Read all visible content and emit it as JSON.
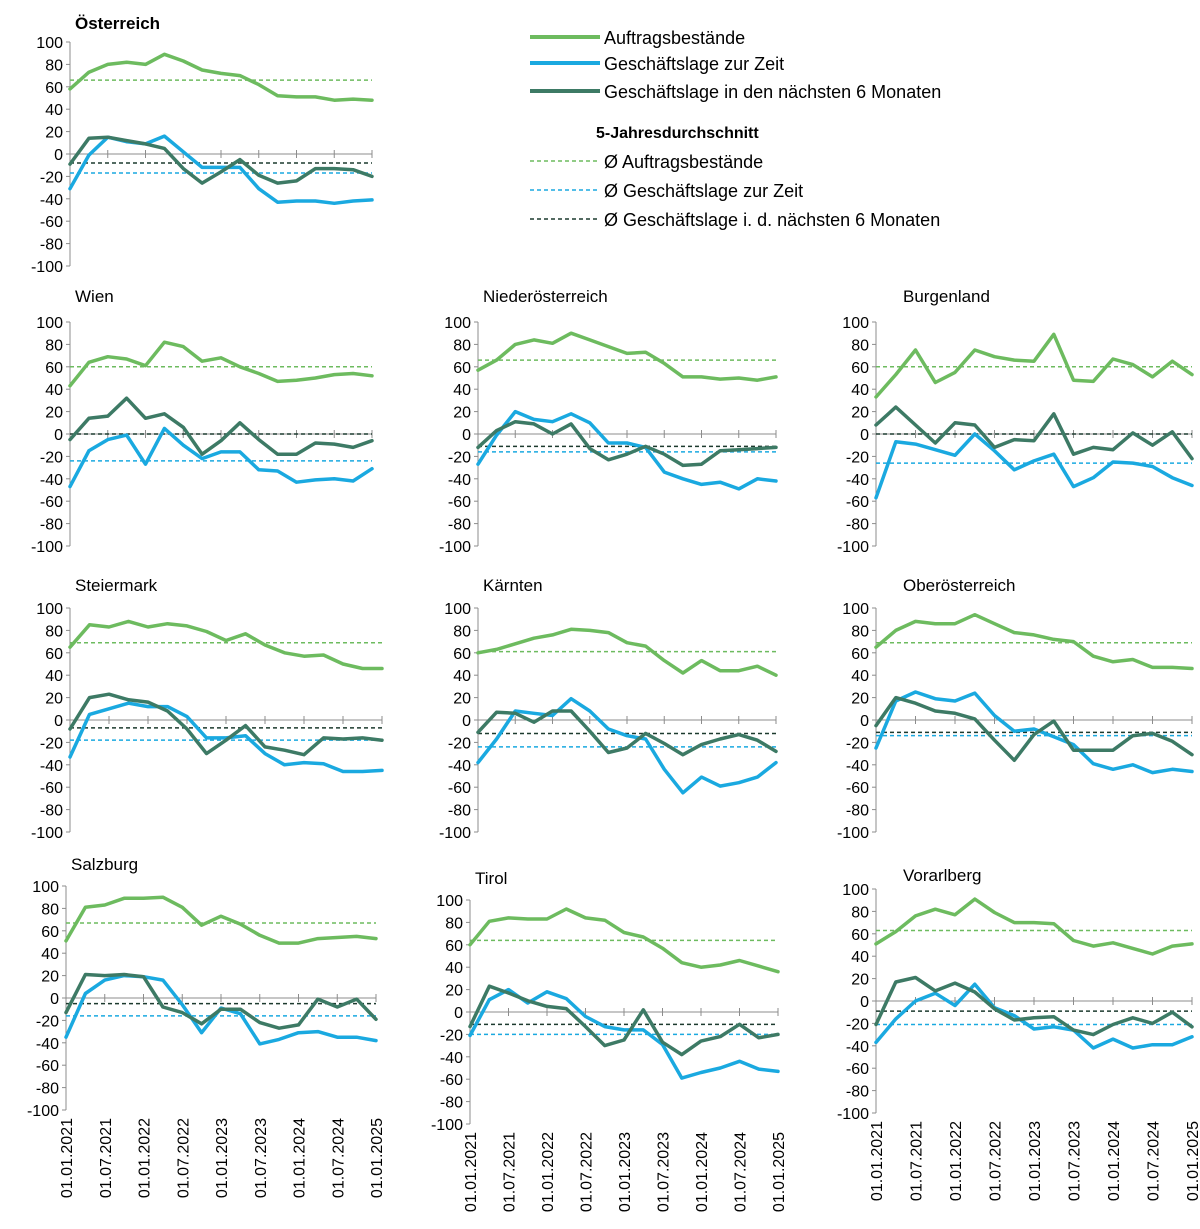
{
  "legend": {
    "series": [
      {
        "label": "Auftragsbestände",
        "color": "#6dbb5f"
      },
      {
        "label": "Geschäftslage zur Zeit",
        "color": "#1aa9e0"
      },
      {
        "label": "Geschäftslage in den nächsten 6 Monaten",
        "color": "#3d7a65"
      }
    ],
    "avg_title": "5-Jahresdurchschnitt",
    "averages": [
      {
        "label": "Ø Auftragsbestände",
        "color": "#6dbb5f"
      },
      {
        "label": "Ø Geschäftslage zur Zeit",
        "color": "#1aa9e0"
      },
      {
        "label": "Ø Geschäftslage i. d. nächsten 6 Monaten",
        "color": "#1c3a2e"
      }
    ]
  },
  "chart_data": [
    {
      "type": "line",
      "title": "Österreich",
      "ylim": [
        -100,
        100
      ],
      "yticks": [
        "100",
        "80",
        "60",
        "40",
        "20",
        "0",
        "-20",
        "-40",
        "-60",
        "-80",
        "-100"
      ],
      "series": [
        {
          "name": "Auftragsbestände",
          "values": [
            58,
            73,
            80,
            82,
            80,
            89,
            83,
            75,
            72,
            70,
            62,
            52,
            51,
            51,
            48,
            49,
            48
          ],
          "avg": 66
        },
        {
          "name": "Geschäftslage zur Zeit",
          "values": [
            -31,
            -1,
            15,
            11,
            9,
            16,
            2,
            -12,
            -12,
            -12,
            -31,
            -43,
            -42,
            -42,
            -44,
            -42,
            -41
          ],
          "avg": -17
        },
        {
          "name": "Geschäftslage in den nächsten 6 Monaten",
          "values": [
            -9,
            14,
            15,
            12,
            9,
            5,
            -13,
            -26,
            -16,
            -5,
            -19,
            -26,
            -24,
            -13,
            -13,
            -14,
            -20
          ],
          "avg": -8
        }
      ]
    },
    {
      "type": "line",
      "title": "Wien",
      "ylim": [
        -100,
        100
      ],
      "yticks": [
        "100",
        "80",
        "60",
        "40",
        "20",
        "0",
        "-20",
        "-40",
        "-60",
        "-80",
        "-100"
      ],
      "series": [
        {
          "name": "Auftragsbestände",
          "values": [
            43,
            64,
            69,
            67,
            61,
            82,
            78,
            65,
            68,
            60,
            54,
            47,
            48,
            50,
            53,
            54,
            52
          ],
          "avg": 60
        },
        {
          "name": "Geschäftslage zur Zeit",
          "values": [
            -47,
            -15,
            -5,
            -1,
            -27,
            5,
            -10,
            -22,
            -16,
            -16,
            -32,
            -33,
            -43,
            -41,
            -40,
            -42,
            -31
          ],
          "avg": -24
        },
        {
          "name": "Geschäftslage in den nächsten 6 Monaten",
          "values": [
            -5,
            14,
            16,
            32,
            14,
            18,
            6,
            -18,
            -6,
            10,
            -5,
            -18,
            -18,
            -8,
            -9,
            -12,
            -6
          ],
          "avg": 0
        }
      ]
    },
    {
      "type": "line",
      "title": "Niederösterreich",
      "ylim": [
        -100,
        100
      ],
      "yticks": [
        "100",
        "80",
        "60",
        "40",
        "20",
        "0",
        "-20",
        "-40",
        "-60",
        "-80",
        "-100"
      ],
      "series": [
        {
          "name": "Auftragsbestände",
          "values": [
            57,
            66,
            80,
            84,
            81,
            90,
            84,
            78,
            72,
            73,
            63,
            51,
            51,
            49,
            50,
            48,
            51
          ],
          "avg": 66
        },
        {
          "name": "Geschäftslage zur Zeit",
          "values": [
            -27,
            -1,
            20,
            13,
            11,
            18,
            10,
            -8,
            -8,
            -12,
            -34,
            -40,
            -45,
            -43,
            -49,
            -40,
            -42
          ],
          "avg": -16
        },
        {
          "name": "Geschäftslage in den nächsten 6 Monaten",
          "values": [
            -12,
            3,
            11,
            9,
            0,
            9,
            -13,
            -23,
            -18,
            -11,
            -18,
            -28,
            -27,
            -15,
            -14,
            -13,
            -12
          ],
          "avg": -11
        }
      ]
    },
    {
      "type": "line",
      "title": "Burgenland",
      "ylim": [
        -100,
        100
      ],
      "yticks": [
        "100",
        "80",
        "60",
        "40",
        "20",
        "0",
        "-20",
        "-40",
        "-60",
        "-80",
        "-100"
      ],
      "series": [
        {
          "name": "Auftragsbestände",
          "values": [
            33,
            53,
            75,
            46,
            55,
            75,
            69,
            66,
            65,
            89,
            48,
            47,
            67,
            62,
            51,
            65,
            53
          ],
          "avg": 60
        },
        {
          "name": "Geschäftslage zur Zeit",
          "values": [
            -57,
            -7,
            -9,
            -14,
            -19,
            0,
            -15,
            -32,
            -24,
            -18,
            -47,
            -39,
            -25,
            -26,
            -29,
            -39,
            -46
          ],
          "avg": -26
        },
        {
          "name": "Geschäftslage in den nächsten 6 Monaten",
          "values": [
            8,
            24,
            8,
            -8,
            10,
            8,
            -12,
            -5,
            -6,
            18,
            -18,
            -12,
            -14,
            1,
            -10,
            2,
            -22
          ],
          "avg": 0
        }
      ]
    },
    {
      "type": "line",
      "title": "Steiermark",
      "ylim": [
        -100,
        100
      ],
      "yticks": [
        "100",
        "80",
        "60",
        "40",
        "20",
        "0",
        "-20",
        "-40",
        "-60",
        "-80",
        "-100"
      ],
      "series": [
        {
          "name": "Auftragsbestände",
          "values": [
            65,
            85,
            83,
            88,
            83,
            86,
            84,
            79,
            71,
            77,
            67,
            60,
            57,
            58,
            50,
            46,
            46
          ],
          "avg": 69
        },
        {
          "name": "Geschäftslage zur Zeit",
          "values": [
            -33,
            5,
            10,
            15,
            12,
            12,
            3,
            -16,
            -16,
            -14,
            -30,
            -40,
            -38,
            -39,
            -46,
            -46,
            -45
          ],
          "avg": -18
        },
        {
          "name": "Geschäftslage in den nächsten 6 Monaten",
          "values": [
            -8,
            20,
            23,
            18,
            16,
            8,
            -8,
            -30,
            -18,
            -5,
            -24,
            -27,
            -31,
            -16,
            -17,
            -16,
            -18
          ],
          "avg": -7
        }
      ]
    },
    {
      "type": "line",
      "title": "Kärnten",
      "ylim": [
        -100,
        100
      ],
      "yticks": [
        "100",
        "80",
        "60",
        "40",
        "20",
        "0",
        "-20",
        "-40",
        "-60",
        "-80",
        "-100"
      ],
      "series": [
        {
          "name": "Auftragsbestände",
          "values": [
            60,
            63,
            68,
            73,
            76,
            81,
            80,
            78,
            69,
            66,
            53,
            42,
            53,
            44,
            44,
            48,
            40
          ],
          "avg": 61
        },
        {
          "name": "Geschäftslage zur Zeit",
          "values": [
            -38,
            -17,
            8,
            6,
            4,
            19,
            8,
            -8,
            -14,
            -17,
            -44,
            -65,
            -51,
            -59,
            -56,
            -51,
            -38
          ],
          "avg": -24
        },
        {
          "name": "Geschäftslage in den nächsten 6 Monaten",
          "values": [
            -11,
            7,
            6,
            -2,
            8,
            8,
            -10,
            -29,
            -25,
            -12,
            -21,
            -31,
            -22,
            -17,
            -13,
            -18,
            -28
          ],
          "avg": -12
        }
      ]
    },
    {
      "type": "line",
      "title": "Oberösterreich",
      "ylim": [
        -100,
        100
      ],
      "yticks": [
        "100",
        "80",
        "60",
        "40",
        "20",
        "0",
        "-20",
        "-40",
        "-60",
        "-80",
        "-100"
      ],
      "series": [
        {
          "name": "Auftragsbestände",
          "values": [
            65,
            80,
            88,
            86,
            86,
            94,
            86,
            78,
            76,
            72,
            70,
            57,
            52,
            54,
            47,
            47,
            46
          ],
          "avg": 69
        },
        {
          "name": "Geschäftslage zur Zeit",
          "values": [
            -25,
            17,
            25,
            19,
            17,
            24,
            4,
            -10,
            -8,
            -15,
            -22,
            -39,
            -44,
            -40,
            -47,
            -44,
            -46
          ],
          "avg": -14
        },
        {
          "name": "Geschäftslage in den nächsten 6 Monaten",
          "values": [
            -5,
            20,
            15,
            8,
            6,
            1,
            -18,
            -36,
            -13,
            -1,
            -27,
            -27,
            -27,
            -14,
            -12,
            -19,
            -31
          ],
          "avg": -11
        }
      ]
    },
    {
      "type": "line",
      "title": "Salzburg",
      "ylim": [
        -100,
        100
      ],
      "yticks": [
        "100",
        "80",
        "60",
        "40",
        "20",
        "0",
        "-20",
        "-40",
        "-60",
        "-80",
        "-100"
      ],
      "series": [
        {
          "name": "Auftragsbestände",
          "values": [
            51,
            81,
            83,
            89,
            89,
            90,
            81,
            65,
            73,
            66,
            56,
            49,
            49,
            53,
            54,
            55,
            53
          ],
          "avg": 67
        },
        {
          "name": "Geschäftslage zur Zeit",
          "values": [
            -35,
            4,
            16,
            20,
            19,
            16,
            -6,
            -31,
            -9,
            -14,
            -41,
            -37,
            -31,
            -30,
            -35,
            -35,
            -38
          ],
          "avg": -16
        },
        {
          "name": "Geschäftslage in den nächsten 6 Monaten",
          "values": [
            -13,
            21,
            20,
            21,
            19,
            -8,
            -13,
            -23,
            -10,
            -10,
            -22,
            -27,
            -24,
            -1,
            -8,
            -1,
            -19
          ],
          "avg": -5
        }
      ]
    },
    {
      "type": "line",
      "title": "Tirol",
      "ylim": [
        -100,
        100
      ],
      "yticks": [
        "100",
        "80",
        "60",
        "40",
        "20",
        "0",
        "-20",
        "-40",
        "-60",
        "-80",
        "-100"
      ],
      "series": [
        {
          "name": "Auftragsbestände",
          "values": [
            60,
            81,
            84,
            83,
            83,
            92,
            84,
            82,
            71,
            67,
            57,
            44,
            40,
            42,
            46,
            41,
            36
          ],
          "avg": 64
        },
        {
          "name": "Geschäftslage zur Zeit",
          "values": [
            -21,
            11,
            20,
            8,
            18,
            12,
            -4,
            -13,
            -16,
            -16,
            -29,
            -59,
            -54,
            -50,
            -44,
            -51,
            -53
          ],
          "avg": -20
        },
        {
          "name": "Geschäftslage in den nächsten 6 Monaten",
          "values": [
            -13,
            23,
            17,
            10,
            5,
            3,
            -13,
            -30,
            -25,
            2,
            -27,
            -38,
            -26,
            -22,
            -11,
            -23,
            -20
          ],
          "avg": -11
        }
      ]
    },
    {
      "type": "line",
      "title": "Vorarlberg",
      "ylim": [
        -100,
        100
      ],
      "yticks": [
        "100",
        "80",
        "60",
        "40",
        "20",
        "0",
        "-20",
        "-40",
        "-60",
        "-80",
        "-100"
      ],
      "series": [
        {
          "name": "Auftragsbestände",
          "values": [
            51,
            62,
            76,
            82,
            77,
            91,
            79,
            70,
            70,
            69,
            54,
            49,
            52,
            47,
            42,
            49,
            51
          ],
          "avg": 63
        },
        {
          "name": "Geschäftslage zur Zeit",
          "values": [
            -37,
            -16,
            0,
            7,
            -4,
            15,
            -6,
            -13,
            -25,
            -23,
            -26,
            -42,
            -34,
            -42,
            -39,
            -39,
            -32
          ],
          "avg": -21
        },
        {
          "name": "Geschäftslage in den nächsten 6 Monaten",
          "values": [
            -21,
            17,
            21,
            9,
            16,
            8,
            -7,
            -17,
            -15,
            -14,
            -26,
            -30,
            -21,
            -15,
            -20,
            -10,
            -23
          ],
          "avg": -9
        }
      ]
    }
  ],
  "xtick_labels": [
    "01.01.2021",
    "01.07.2021",
    "01.01.2022",
    "01.07.2022",
    "01.01.2023",
    "01.07.2023",
    "01.01.2024",
    "01.07.2024",
    "01.01.2025"
  ]
}
